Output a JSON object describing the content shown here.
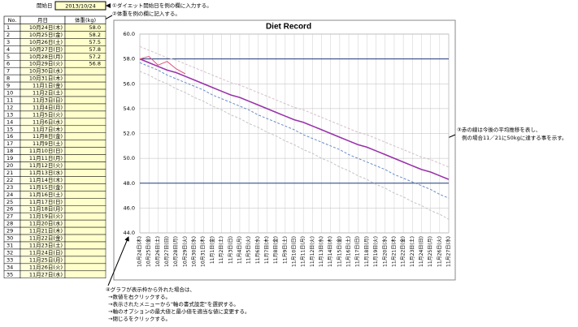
{
  "header": {
    "start_label": "開始日",
    "start_date": "2013/10/24",
    "note1": "①ダイエット開始日を例の欄に入力する。",
    "note2": "②体重を例の欄に記入する。"
  },
  "table": {
    "columns": [
      "No.",
      "月日",
      "体重(kg)"
    ],
    "numbers": [
      1,
      2,
      3,
      4,
      5,
      6,
      7,
      8,
      9,
      10,
      11,
      12,
      13,
      14,
      15,
      16,
      17,
      18,
      19,
      20,
      21,
      22,
      23,
      24,
      25,
      26,
      27,
      28,
      29,
      30,
      31,
      32,
      33,
      34,
      35
    ]
  },
  "annotations": {
    "right": [
      "③赤の線は今後の平均推移を表し、",
      "例の場合11／21に50kgに達する事を示す。"
    ],
    "bottom": [
      "④グラフが表示枠から外れた場合は、",
      "→数値を右クリックする。",
      "→表示されたメニューから\"軸の書式設定\"を選択する。",
      "→軸のオプションの最大値と最小値を適当な値に変更する。",
      "→閉じるをクリックする。"
    ]
  },
  "chart_data": {
    "type": "line",
    "title": "Diet Record",
    "categories": [
      "10月24日(木)",
      "10月25日(金)",
      "10月26日(土)",
      "10月27日(日)",
      "10月28日(月)",
      "10月29日(火)",
      "10月30日(水)",
      "10月31日(木)",
      "11月1日(金)",
      "11月2日(土)",
      "11月3日(日)",
      "11月4日(月)",
      "11月5日(火)",
      "11月6日(水)",
      "11月7日(木)",
      "11月8日(金)",
      "11月9日(土)",
      "11月10日(日)",
      "11月11日(月)",
      "11月12日(火)",
      "11月13日(水)",
      "11月14日(木)",
      "11月15日(金)",
      "11月16日(土)",
      "11月17日(日)",
      "11月18日(月)",
      "11月19日(火)",
      "11月20日(水)",
      "11月21日(木)",
      "11月22日(金)",
      "11月23日(土)",
      "11月24日(日)",
      "11月25日(月)",
      "11月26日(火)",
      "11月27日(水)"
    ],
    "series": [
      {
        "color": "#e0507a",
        "dashed": false,
        "width": 1,
        "values": [
          58.0,
          58.2,
          57.5,
          57.8,
          57.2,
          56.8,
          null,
          null,
          null,
          null,
          null,
          null,
          null,
          null,
          null,
          null,
          null,
          null,
          null,
          null,
          null,
          null,
          null,
          null,
          null,
          null,
          null,
          null,
          null,
          null,
          null,
          null,
          null,
          null,
          null
        ],
        "value_labels": [
          "58.0",
          "58.2",
          "57.5",
          "57.8",
          "57.2",
          "56.8"
        ]
      },
      {
        "color": "#9933aa",
        "dashed": false,
        "width": 1.6,
        "values": [
          58.0,
          57.7,
          57.4,
          57.1,
          56.9,
          56.6,
          56.3,
          56.0,
          55.7,
          55.4,
          55.1,
          54.9,
          54.6,
          54.3,
          54.0,
          53.7,
          53.4,
          53.1,
          52.9,
          52.6,
          52.3,
          52.0,
          51.7,
          51.4,
          51.1,
          50.9,
          50.6,
          50.3,
          50.0,
          49.7,
          49.4,
          49.1,
          48.9,
          48.6,
          48.3
        ]
      },
      {
        "color": "#d4c0c8",
        "dashed": true,
        "width": 1,
        "values": [
          59.0,
          58.7,
          58.4,
          58.1,
          57.9,
          57.6,
          57.3,
          57.0,
          56.7,
          56.4,
          56.1,
          55.9,
          55.6,
          55.3,
          55.0,
          54.7,
          54.4,
          54.1,
          53.9,
          53.6,
          53.3,
          53.0,
          52.7,
          52.4,
          52.1,
          51.9,
          51.6,
          51.3,
          51.0,
          50.7,
          50.4,
          50.1,
          49.9,
          49.6,
          49.3
        ]
      },
      {
        "color": "#c4c4c4",
        "dashed": true,
        "width": 1,
        "values": [
          57.0,
          56.7,
          56.3,
          56.0,
          55.6,
          55.3,
          54.9,
          54.6,
          54.2,
          53.9,
          53.5,
          53.2,
          52.8,
          52.5,
          52.1,
          51.8,
          51.4,
          51.1,
          50.7,
          50.4,
          50.0,
          49.7,
          49.3,
          49.0,
          48.6,
          48.3,
          47.9,
          47.6,
          47.2,
          46.9,
          46.5,
          46.2,
          45.8,
          45.5,
          45.1
        ]
      },
      {
        "color": "#6a8cc8",
        "dashed": true,
        "width": 1,
        "values": [
          57.7,
          57.4,
          57.1,
          56.7,
          56.4,
          56.1,
          55.8,
          55.5,
          55.1,
          54.8,
          54.5,
          54.2,
          53.9,
          53.5,
          53.2,
          52.9,
          52.6,
          52.3,
          51.9,
          51.6,
          51.3,
          51.0,
          50.7,
          50.3,
          50.0,
          49.7,
          49.4,
          49.1,
          48.7,
          48.4,
          48.1,
          47.8,
          47.5,
          47.1,
          46.8
        ]
      }
    ],
    "ylim": [
      44,
      60
    ],
    "yticks": [
      {
        "value": 44,
        "label": "44.0"
      },
      {
        "value": 46,
        "label": "46.0"
      },
      {
        "value": 48,
        "label": "48.0"
      },
      {
        "value": 50,
        "label": "50.0"
      },
      {
        "value": 52,
        "label": "52.0"
      },
      {
        "value": 54,
        "label": "54.0"
      },
      {
        "value": 56,
        "label": "56.0"
      },
      {
        "value": 58,
        "label": "58.0"
      },
      {
        "value": 60,
        "label": "60.0"
      }
    ],
    "reference_lines": [
      58,
      48
    ],
    "reference_color": "#1f3a7a",
    "grid": true
  }
}
